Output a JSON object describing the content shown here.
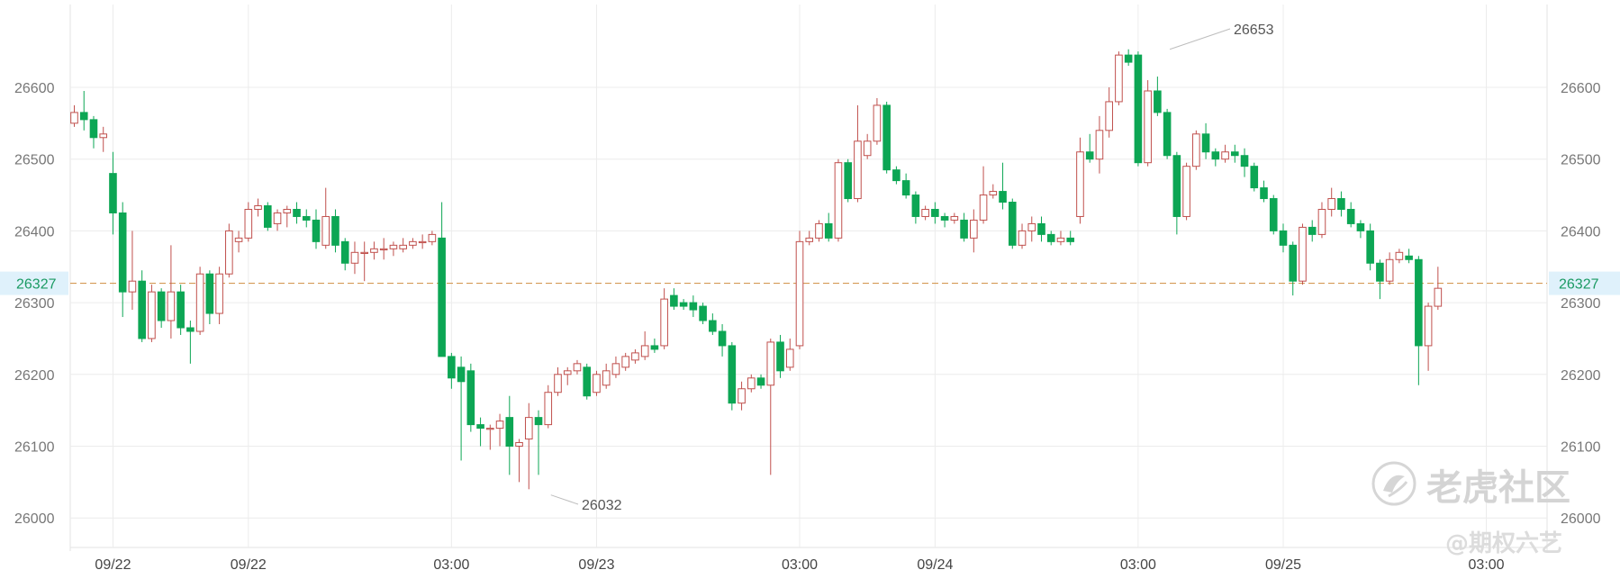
{
  "chart_data": {
    "type": "candlestick",
    "title": "",
    "xlabel": "",
    "ylabel": "",
    "ylim": [
      25950,
      26720
    ],
    "y_ticks": [
      26000,
      26100,
      26200,
      26300,
      26400,
      26500,
      26600
    ],
    "grid": true,
    "x_tick_labels": [
      {
        "label": "09/22",
        "at_bar": 4
      },
      {
        "label": "09/22",
        "at_bar": 18
      },
      {
        "label": "03:00",
        "at_bar": 39
      },
      {
        "label": "09/23",
        "at_bar": 54
      },
      {
        "label": "03:00",
        "at_bar": 75
      },
      {
        "label": "09/24",
        "at_bar": 89
      },
      {
        "label": "03:00",
        "at_bar": 110
      },
      {
        "label": "09/25",
        "at_bar": 125
      },
      {
        "label": "03:00",
        "at_bar": 146
      }
    ],
    "reference_line": {
      "value": 26327,
      "label": "26327",
      "style": "dashed",
      "color": "#d49a55"
    },
    "annotations": [
      {
        "text": "26653",
        "value": 26653,
        "at_bar": 113,
        "kind": "high"
      },
      {
        "text": "26032",
        "value": 26032,
        "at_bar": 49,
        "kind": "low"
      }
    ],
    "colors": {
      "up": "#c0504d",
      "down": "#0ca654",
      "grid": "#ececec",
      "text": "#777777"
    },
    "candles": [
      [
        26550,
        26565,
        26545,
        26575
      ],
      [
        26565,
        26555,
        26540,
        26595
      ],
      [
        26555,
        26530,
        26515,
        26560
      ],
      [
        26530,
        26535,
        26510,
        26545
      ],
      [
        26480,
        26425,
        26395,
        26510
      ],
      [
        26425,
        26315,
        26280,
        26440
      ],
      [
        26315,
        26330,
        26290,
        26400
      ],
      [
        26330,
        26250,
        26245,
        26345
      ],
      [
        26250,
        26315,
        26245,
        26325
      ],
      [
        26315,
        26275,
        26265,
        26320
      ],
      [
        26275,
        26315,
        26250,
        26380
      ],
      [
        26315,
        26265,
        26255,
        26325
      ],
      [
        26265,
        26260,
        26215,
        26275
      ],
      [
        26260,
        26340,
        26255,
        26350
      ],
      [
        26340,
        26285,
        26270,
        26345
      ],
      [
        26285,
        26340,
        26270,
        26350
      ],
      [
        26340,
        26400,
        26335,
        26410
      ],
      [
        26385,
        26390,
        26370,
        26400
      ],
      [
        26390,
        26430,
        26385,
        26440
      ],
      [
        26430,
        26435,
        26420,
        26445
      ],
      [
        26435,
        26405,
        26400,
        26440
      ],
      [
        26410,
        26425,
        26400,
        26430
      ],
      [
        26425,
        26430,
        26405,
        26435
      ],
      [
        26430,
        26420,
        26410,
        26440
      ],
      [
        26420,
        26415,
        26405,
        26430
      ],
      [
        26415,
        26385,
        26375,
        26430
      ],
      [
        26380,
        26420,
        26375,
        26460
      ],
      [
        26420,
        26380,
        26370,
        26430
      ],
      [
        26385,
        26355,
        26345,
        26390
      ],
      [
        26355,
        26370,
        26340,
        26385
      ],
      [
        26370,
        26370,
        26330,
        26385
      ],
      [
        26370,
        26375,
        26360,
        26385
      ],
      [
        26375,
        26375,
        26360,
        26390
      ],
      [
        26375,
        26380,
        26365,
        26385
      ],
      [
        26375,
        26380,
        26370,
        26390
      ],
      [
        26380,
        26385,
        26375,
        26390
      ],
      [
        26385,
        26385,
        26375,
        26395
      ],
      [
        26385,
        26395,
        26380,
        26400
      ],
      [
        26390,
        26225,
        26225,
        26440
      ],
      [
        26225,
        26195,
        26180,
        26230
      ],
      [
        26210,
        26190,
        26080,
        26225
      ],
      [
        26205,
        26130,
        26120,
        26215
      ],
      [
        26130,
        26125,
        26100,
        26140
      ],
      [
        26125,
        26125,
        26095,
        26130
      ],
      [
        26125,
        26135,
        26100,
        26145
      ],
      [
        26140,
        26100,
        26060,
        26170
      ],
      [
        26100,
        26105,
        26050,
        26110
      ],
      [
        26110,
        26140,
        26040,
        26160
      ],
      [
        26140,
        26130,
        26060,
        26150
      ],
      [
        26130,
        26175,
        26125,
        26185
      ],
      [
        26175,
        26200,
        26170,
        26210
      ],
      [
        26200,
        26205,
        26185,
        26210
      ],
      [
        26205,
        26215,
        26200,
        26220
      ],
      [
        26210,
        26170,
        26165,
        26215
      ],
      [
        26175,
        26200,
        26170,
        26205
      ],
      [
        26185,
        26205,
        26180,
        26215
      ],
      [
        26200,
        26215,
        26195,
        26225
      ],
      [
        26210,
        26225,
        26205,
        26230
      ],
      [
        26220,
        26230,
        26215,
        26235
      ],
      [
        26225,
        26240,
        26220,
        26260
      ],
      [
        26240,
        26235,
        26230,
        26250
      ],
      [
        26240,
        26305,
        26235,
        26320
      ],
      [
        26310,
        26295,
        26290,
        26320
      ],
      [
        26300,
        26295,
        26290,
        26305
      ],
      [
        26300,
        26290,
        26280,
        26310
      ],
      [
        26295,
        26275,
        26270,
        26300
      ],
      [
        26275,
        26260,
        26255,
        26285
      ],
      [
        26260,
        26240,
        26225,
        26270
      ],
      [
        26240,
        26160,
        26150,
        26245
      ],
      [
        26160,
        26180,
        26150,
        26190
      ],
      [
        26180,
        26195,
        26175,
        26200
      ],
      [
        26195,
        26185,
        26180,
        26200
      ],
      [
        26185,
        26245,
        26060,
        26250
      ],
      [
        26245,
        26205,
        26195,
        26255
      ],
      [
        26210,
        26235,
        26205,
        26250
      ],
      [
        26240,
        26385,
        26235,
        26400
      ],
      [
        26385,
        26390,
        26380,
        26400
      ],
      [
        26390,
        26410,
        26385,
        26415
      ],
      [
        26410,
        26390,
        26385,
        26425
      ],
      [
        26390,
        26495,
        26385,
        26500
      ],
      [
        26495,
        26445,
        26440,
        26500
      ],
      [
        26445,
        26525,
        26440,
        26575
      ],
      [
        26505,
        26525,
        26500,
        26535
      ],
      [
        26525,
        26575,
        26520,
        26585
      ],
      [
        26575,
        26485,
        26480,
        26580
      ],
      [
        26485,
        26470,
        26465,
        26490
      ],
      [
        26470,
        26450,
        26445,
        26480
      ],
      [
        26450,
        26420,
        26410,
        26455
      ],
      [
        26420,
        26430,
        26415,
        26435
      ],
      [
        26430,
        26420,
        26410,
        26440
      ],
      [
        26420,
        26415,
        26405,
        26425
      ],
      [
        26415,
        26420,
        26410,
        26425
      ],
      [
        26415,
        26390,
        26385,
        26425
      ],
      [
        26390,
        26415,
        26370,
        26430
      ],
      [
        26415,
        26450,
        26410,
        26490
      ],
      [
        26450,
        26455,
        26445,
        26465
      ],
      [
        26455,
        26440,
        26430,
        26495
      ],
      [
        26440,
        26380,
        26375,
        26445
      ],
      [
        26380,
        26400,
        26375,
        26410
      ],
      [
        26400,
        26410,
        26385,
        26420
      ],
      [
        26410,
        26395,
        26385,
        26420
      ],
      [
        26395,
        26385,
        26380,
        26400
      ],
      [
        26385,
        26390,
        26380,
        26400
      ],
      [
        26390,
        26385,
        26380,
        26400
      ],
      [
        26420,
        26510,
        26410,
        26530
      ],
      [
        26510,
        26500,
        26495,
        26535
      ],
      [
        26500,
        26540,
        26480,
        26560
      ],
      [
        26540,
        26580,
        26530,
        26600
      ],
      [
        26580,
        26645,
        26575,
        26650
      ],
      [
        26645,
        26635,
        26630,
        26653
      ],
      [
        26645,
        26495,
        26490,
        26650
      ],
      [
        26495,
        26595,
        26490,
        26610
      ],
      [
        26595,
        26565,
        26560,
        26615
      ],
      [
        26565,
        26505,
        26500,
        26570
      ],
      [
        26505,
        26420,
        26395,
        26510
      ],
      [
        26420,
        26490,
        26415,
        26495
      ],
      [
        26490,
        26535,
        26485,
        26540
      ],
      [
        26535,
        26510,
        26500,
        26550
      ],
      [
        26510,
        26500,
        26490,
        26515
      ],
      [
        26500,
        26510,
        26495,
        26520
      ],
      [
        26510,
        26505,
        26495,
        26520
      ],
      [
        26505,
        26490,
        26475,
        26515
      ],
      [
        26490,
        26460,
        26455,
        26495
      ],
      [
        26460,
        26445,
        26440,
        26470
      ],
      [
        26445,
        26400,
        26395,
        26450
      ],
      [
        26400,
        26380,
        26370,
        26410
      ],
      [
        26380,
        26330,
        26310,
        26385
      ],
      [
        26330,
        26405,
        26325,
        26410
      ],
      [
        26405,
        26395,
        26385,
        26415
      ],
      [
        26395,
        26430,
        26390,
        26440
      ],
      [
        26430,
        26445,
        26420,
        26460
      ],
      [
        26445,
        26430,
        26420,
        26455
      ],
      [
        26430,
        26410,
        26405,
        26440
      ],
      [
        26410,
        26400,
        26390,
        26415
      ],
      [
        26400,
        26355,
        26345,
        26410
      ],
      [
        26355,
        26330,
        26305,
        26360
      ],
      [
        26330,
        26360,
        26325,
        26370
      ],
      [
        26360,
        26370,
        26355,
        26375
      ],
      [
        26365,
        26360,
        26355,
        26375
      ],
      [
        26360,
        26240,
        26185,
        26365
      ],
      [
        26240,
        26295,
        26205,
        26300
      ],
      [
        26295,
        26320,
        26290,
        26350
      ]
    ]
  },
  "watermark": {
    "brand_text": "老虎社区",
    "handle_text": "@期权六艺",
    "logo_icon": "tiger-logo-icon"
  }
}
